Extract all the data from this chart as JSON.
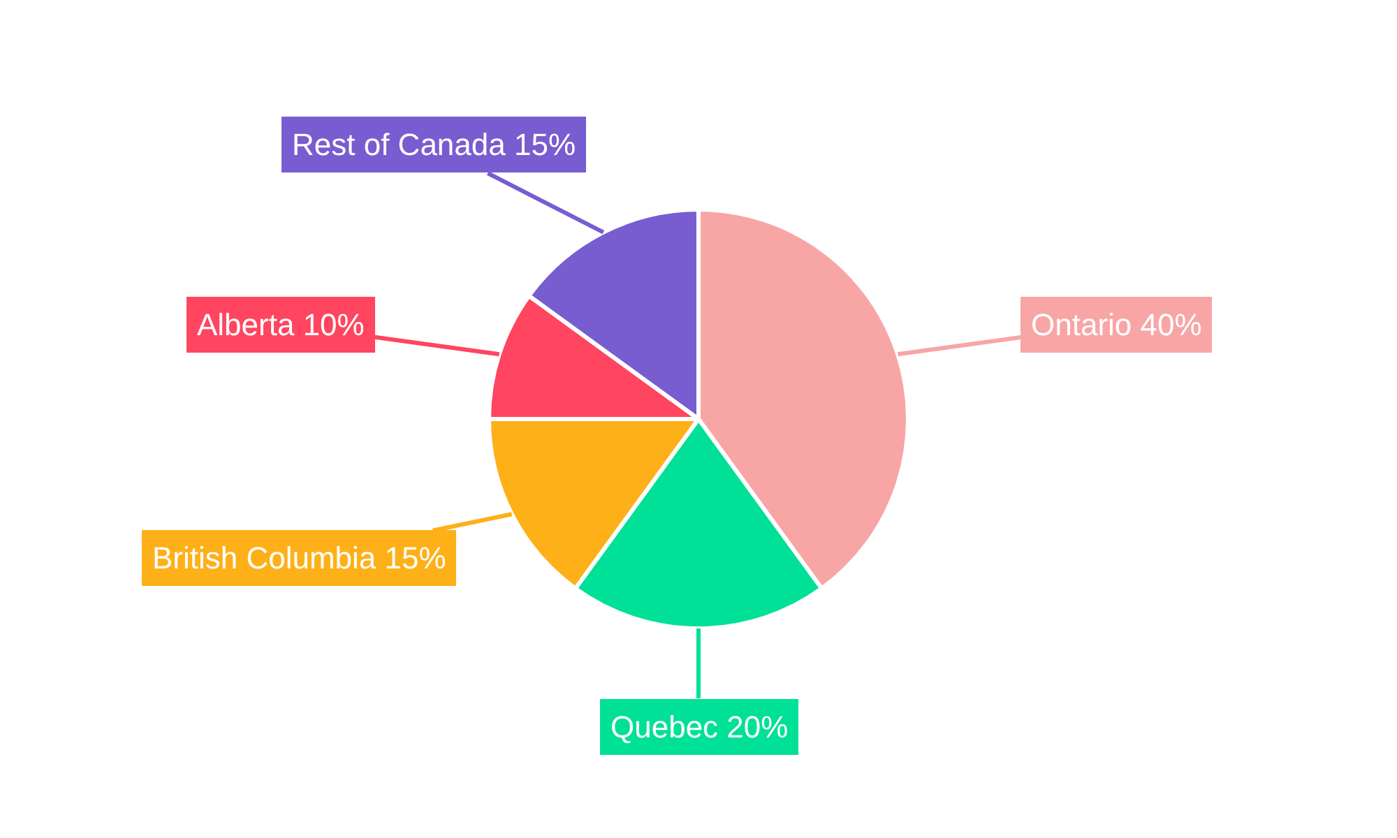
{
  "chart_data": {
    "type": "pie",
    "categories": [
      "Ontario",
      "Quebec",
      "British Columbia",
      "Alberta",
      "Rest of Canada"
    ],
    "values": [
      40,
      20,
      15,
      10,
      15
    ],
    "value_labels": [
      "40%",
      "20%",
      "15%",
      "10%",
      "15%"
    ],
    "colors": [
      "#f8a5a6",
      "#00e096",
      "#feb019",
      "#ff4560",
      "#775dd0"
    ]
  }
}
